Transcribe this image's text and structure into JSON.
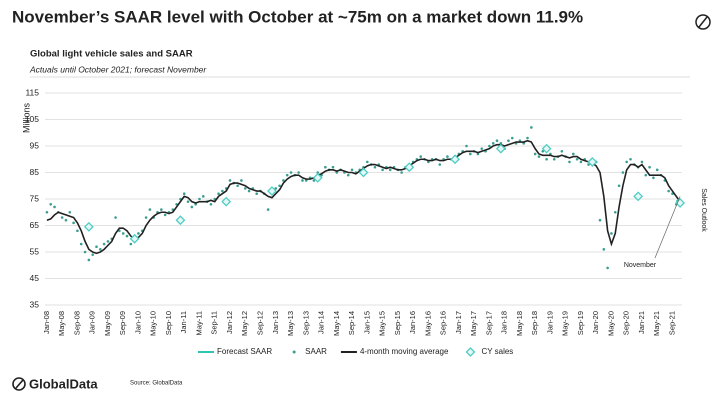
{
  "page": {
    "side_label": "Sales Outlook",
    "source": "Source: GlobalData",
    "brand": "GlobalData"
  },
  "chart_data": {
    "type": "line",
    "title": "November’s SAAR level with October at ~75m on a market down 11.9%",
    "subtitle": "Global light vehicle sales and SAAR",
    "note": "Actuals until October 2021; forecast November",
    "y_label": "Millions",
    "annotation": "November",
    "ylim": [
      35,
      115
    ],
    "yticks": [
      35,
      45,
      55,
      65,
      75,
      85,
      95,
      105,
      115
    ],
    "grid": true,
    "categories": [
      "Jan-08",
      null,
      null,
      null,
      "May-08",
      null,
      null,
      null,
      "Sep-08",
      null,
      null,
      null,
      "Jan-09",
      null,
      null,
      null,
      "May-09",
      null,
      null,
      null,
      "Sep-09",
      null,
      null,
      null,
      "Jan-10",
      null,
      null,
      null,
      "May-10",
      null,
      null,
      null,
      "Sep-10",
      null,
      null,
      null,
      "Jan-11",
      null,
      null,
      null,
      "May-11",
      null,
      null,
      null,
      "Sep-11",
      null,
      null,
      null,
      "Jan-12",
      null,
      null,
      null,
      "May-12",
      null,
      null,
      null,
      "Sep-12",
      null,
      null,
      null,
      "Jan-13",
      null,
      null,
      null,
      "May-13",
      null,
      null,
      null,
      "Sep-13",
      null,
      null,
      null,
      "Jan-14",
      null,
      null,
      null,
      "May-14",
      null,
      null,
      null,
      "Sep-14",
      null,
      null,
      null,
      "Jan-15",
      null,
      null,
      null,
      "May-15",
      null,
      null,
      null,
      "Sep-15",
      null,
      null,
      null,
      "Jan-16",
      null,
      null,
      null,
      "May-16",
      null,
      null,
      null,
      "Sep-16",
      null,
      null,
      null,
      "Jan-17",
      null,
      null,
      null,
      "May-17",
      null,
      null,
      null,
      "Sep-17",
      null,
      null,
      null,
      "Jan-18",
      null,
      null,
      null,
      "May-18",
      null,
      null,
      null,
      "Sep-18",
      null,
      null,
      null,
      "Jan-19",
      null,
      null,
      null,
      "May-19",
      null,
      null,
      null,
      "Sep-19",
      null,
      null,
      null,
      "Jan-20",
      null,
      null,
      null,
      "May-20",
      null,
      null,
      null,
      "Sep-20",
      null,
      null,
      null,
      "Jan-21",
      null,
      null,
      null,
      "May-21",
      null,
      null,
      null,
      "Sep-21",
      null,
      null
    ],
    "series": [
      {
        "name": "Forecast SAAR",
        "color": "#2ec4b6",
        "kind": "line",
        "values": [
          null,
          null,
          null,
          null,
          null,
          null,
          null,
          null,
          null,
          null,
          null,
          null,
          null,
          null,
          null,
          null,
          null,
          null,
          null,
          null,
          null,
          null,
          null,
          null,
          null,
          null,
          null,
          null,
          null,
          null,
          null,
          null,
          null,
          null,
          null,
          null,
          null,
          null,
          null,
          null,
          null,
          null,
          null,
          null,
          null,
          null,
          null,
          null,
          null,
          null,
          null,
          null,
          null,
          null,
          null,
          null,
          null,
          null,
          null,
          null,
          null,
          null,
          null,
          null,
          null,
          null,
          null,
          null,
          null,
          null,
          null,
          null,
          null,
          null,
          null,
          null,
          null,
          null,
          null,
          null,
          null,
          null,
          null,
          null,
          null,
          null,
          null,
          null,
          null,
          null,
          null,
          null,
          null,
          null,
          null,
          null,
          null,
          null,
          null,
          null,
          null,
          null,
          null,
          null,
          null,
          null,
          null,
          null,
          null,
          null,
          null,
          null,
          null,
          null,
          null,
          null,
          null,
          null,
          null,
          null,
          null,
          null,
          null,
          null,
          null,
          null,
          null,
          null,
          null,
          null,
          null,
          null,
          null,
          null,
          null,
          null,
          null,
          null,
          null,
          null,
          null,
          null,
          null,
          null,
          null,
          null,
          null,
          null,
          null,
          null,
          null,
          null,
          null,
          null,
          null,
          null,
          null,
          null,
          null,
          null,
          null,
          null,
          null,
          null,
          null,
          74,
          75
        ]
      },
      {
        "name": "SAAR",
        "color": "#3a9e8f",
        "kind": "dots",
        "values": [
          70,
          73,
          72,
          70,
          68,
          67,
          70,
          66,
          63,
          58,
          55,
          52,
          54,
          57,
          56,
          58,
          59,
          60,
          68,
          63,
          62,
          61,
          58,
          61,
          62,
          63,
          68,
          71,
          68,
          70,
          71,
          69,
          70,
          71,
          73,
          75,
          77,
          74,
          72,
          73,
          75,
          76,
          74,
          73,
          75,
          77,
          78,
          79,
          82,
          81,
          80,
          82,
          79,
          78,
          79,
          77,
          78,
          77,
          71,
          77,
          79,
          80,
          82,
          84,
          85,
          84,
          85,
          82,
          82,
          83,
          82,
          85,
          84,
          87,
          86,
          87,
          85,
          86,
          85,
          84,
          86,
          85,
          86,
          87,
          89,
          88,
          87,
          88,
          86,
          87,
          86,
          87,
          86,
          85,
          87,
          88,
          89,
          90,
          91,
          90,
          89,
          90,
          90,
          88,
          90,
          91,
          90,
          91,
          92,
          93,
          95,
          92,
          93,
          92,
          94,
          93,
          95,
          96,
          97,
          96,
          94,
          97,
          98,
          96,
          97,
          96,
          98,
          102,
          92,
          91,
          93,
          90,
          92,
          90,
          91,
          93,
          91,
          89,
          92,
          90,
          89,
          90,
          88,
          89,
          89,
          67,
          56,
          49,
          62,
          70,
          80,
          85,
          89,
          90,
          88,
          87,
          89,
          84,
          87,
          83,
          86,
          84,
          82,
          78,
          77,
          73,
          null
        ]
      },
      {
        "name": "4-month moving average",
        "color": "#222222",
        "kind": "line",
        "values": [
          67,
          67.5,
          69,
          70,
          69.5,
          69,
          68.5,
          68,
          66,
          63,
          59,
          56,
          55,
          54.5,
          55,
          56,
          57.5,
          59,
          62,
          64,
          64,
          63,
          61,
          60,
          60.5,
          62,
          65,
          67,
          68.5,
          69.5,
          70,
          70,
          69.5,
          70,
          72,
          74,
          76,
          75.5,
          74,
          73.5,
          74,
          74,
          74,
          74.5,
          74,
          76,
          77,
          78,
          80.5,
          81,
          81,
          80.5,
          80,
          79,
          78.5,
          78,
          78,
          77,
          76,
          75.5,
          77,
          78.5,
          81,
          82.5,
          83.5,
          84,
          84,
          83,
          82.5,
          82.5,
          83,
          84,
          84.5,
          85.5,
          86,
          86,
          85.5,
          86,
          85.5,
          85,
          85,
          84.5,
          85.5,
          86.5,
          87.5,
          88,
          88,
          87.5,
          87,
          86.5,
          87,
          86.5,
          86,
          86,
          86.5,
          87.5,
          88.5,
          89.5,
          90,
          90,
          89.5,
          89.5,
          90,
          89.5,
          89.5,
          90,
          90,
          90.5,
          91.5,
          92.5,
          93,
          93,
          93,
          92.5,
          93,
          93.5,
          94,
          95,
          95.5,
          95.5,
          95,
          95.5,
          96,
          96.5,
          96.5,
          96.5,
          97,
          96.5,
          94,
          92,
          91.5,
          91.5,
          91.5,
          91,
          91,
          91.5,
          91,
          90.5,
          91,
          91,
          90,
          89.5,
          89,
          88.5,
          87.5,
          85,
          76,
          63,
          58,
          62,
          72,
          80,
          86,
          88,
          88,
          87,
          88,
          86,
          84,
          84,
          84,
          84,
          83,
          80,
          78,
          76,
          74
        ]
      },
      {
        "name": "CY sales",
        "color": "#4ecdc4",
        "kind": "diamond",
        "values": [
          null,
          null,
          null,
          null,
          null,
          null,
          null,
          null,
          null,
          null,
          null,
          64.5,
          null,
          null,
          null,
          null,
          null,
          null,
          null,
          null,
          null,
          null,
          null,
          60,
          null,
          null,
          null,
          null,
          null,
          null,
          null,
          null,
          null,
          null,
          null,
          67,
          null,
          null,
          null,
          null,
          null,
          null,
          null,
          null,
          null,
          null,
          null,
          74,
          null,
          null,
          null,
          null,
          null,
          null,
          null,
          null,
          null,
          null,
          null,
          78,
          null,
          null,
          null,
          null,
          null,
          null,
          null,
          null,
          null,
          null,
          null,
          83,
          null,
          null,
          null,
          null,
          null,
          null,
          null,
          null,
          null,
          null,
          null,
          85,
          null,
          null,
          null,
          null,
          null,
          null,
          null,
          null,
          null,
          null,
          null,
          87,
          null,
          null,
          null,
          null,
          null,
          null,
          null,
          null,
          null,
          null,
          null,
          90,
          null,
          null,
          null,
          null,
          null,
          null,
          null,
          null,
          null,
          null,
          null,
          94,
          null,
          null,
          null,
          null,
          null,
          null,
          null,
          null,
          null,
          null,
          null,
          94,
          null,
          null,
          null,
          null,
          null,
          null,
          null,
          null,
          null,
          null,
          null,
          89,
          null,
          null,
          null,
          null,
          null,
          null,
          null,
          null,
          null,
          null,
          null,
          76,
          null,
          null,
          null,
          null,
          null,
          null,
          null,
          null,
          null,
          null,
          73.5
        ]
      }
    ]
  }
}
